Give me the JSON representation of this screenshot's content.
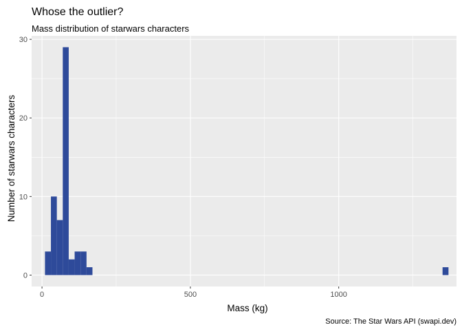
{
  "chart_data": {
    "type": "bar",
    "title": "Whose the outlier?",
    "subtitle": "Mass distribution of starwars characters",
    "caption": "Source: The Star Wars API (swapi.dev)",
    "xlabel": "Mass (kg)",
    "ylabel": "Number of starwars characters",
    "xlim": [
      -35,
      1397
    ],
    "ylim": [
      -1.45,
      30.45
    ],
    "xticks": [
      0,
      500,
      1000
    ],
    "yticks": [
      0,
      10,
      20,
      30
    ],
    "grid": true,
    "bin_width": 20,
    "bins": [
      {
        "start": 10,
        "end": 30,
        "count": 3
      },
      {
        "start": 30,
        "end": 50,
        "count": 10
      },
      {
        "start": 50,
        "end": 70,
        "count": 7
      },
      {
        "start": 70,
        "end": 90,
        "count": 29
      },
      {
        "start": 90,
        "end": 110,
        "count": 2
      },
      {
        "start": 110,
        "end": 130,
        "count": 3
      },
      {
        "start": 130,
        "end": 150,
        "count": 3
      },
      {
        "start": 150,
        "end": 170,
        "count": 1
      },
      {
        "start": 1350,
        "end": 1370,
        "count": 1
      }
    ],
    "colors": {
      "bar": "#2e4a9a",
      "panel": "#ebebeb",
      "grid": "#ffffff"
    }
  }
}
